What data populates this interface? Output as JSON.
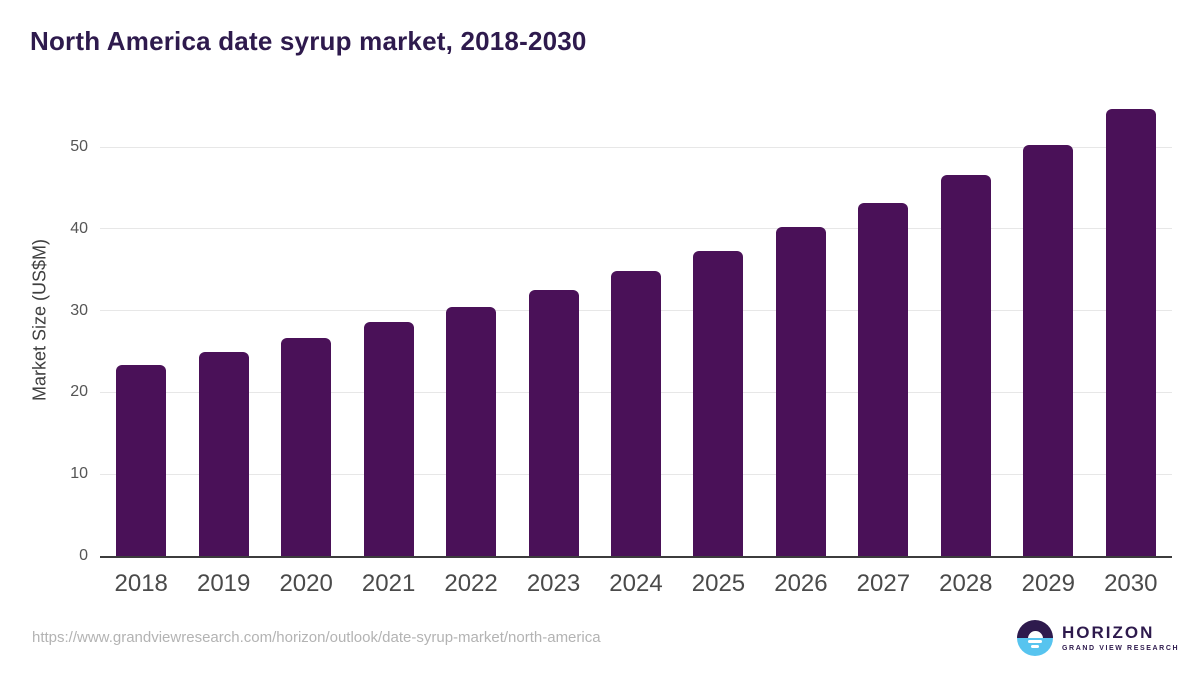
{
  "title": "North America date syrup market, 2018-2030",
  "chart_data": {
    "type": "bar",
    "title": "North America date syrup market, 2018-2030",
    "categories": [
      "2018",
      "2019",
      "2020",
      "2021",
      "2022",
      "2023",
      "2024",
      "2025",
      "2026",
      "2027",
      "2028",
      "2029",
      "2030"
    ],
    "values": [
      23.4,
      24.9,
      26.6,
      28.6,
      30.4,
      32.5,
      34.9,
      37.3,
      40.2,
      43.2,
      46.6,
      50.3,
      54.6
    ],
    "xlabel": "",
    "ylabel": "Market Size (US$M)",
    "ylim": [
      0,
      56
    ],
    "yticks": [
      0,
      10,
      20,
      30,
      40,
      50
    ],
    "grid": "horizontal",
    "legend": "none",
    "bar_color": "#4a1158"
  },
  "footer": {
    "source_url": "https://www.grandviewresearch.com/horizon/outlook/date-syrup-market/north-america",
    "logo": {
      "name": "HORIZON",
      "subtitle": "GRAND VIEW RESEARCH"
    }
  },
  "colors": {
    "bar": "#4a1158",
    "title": "#2e1a4d",
    "gridline": "#e7e7e7",
    "axis_line": "#3c3c3c",
    "tick_text": "#555555",
    "x_tick_text": "#4a4a4a",
    "url_text": "#b3b3b3",
    "logo_purple": "#2e1a4d",
    "logo_blue": "#57c4ef",
    "background": "#ffffff"
  }
}
